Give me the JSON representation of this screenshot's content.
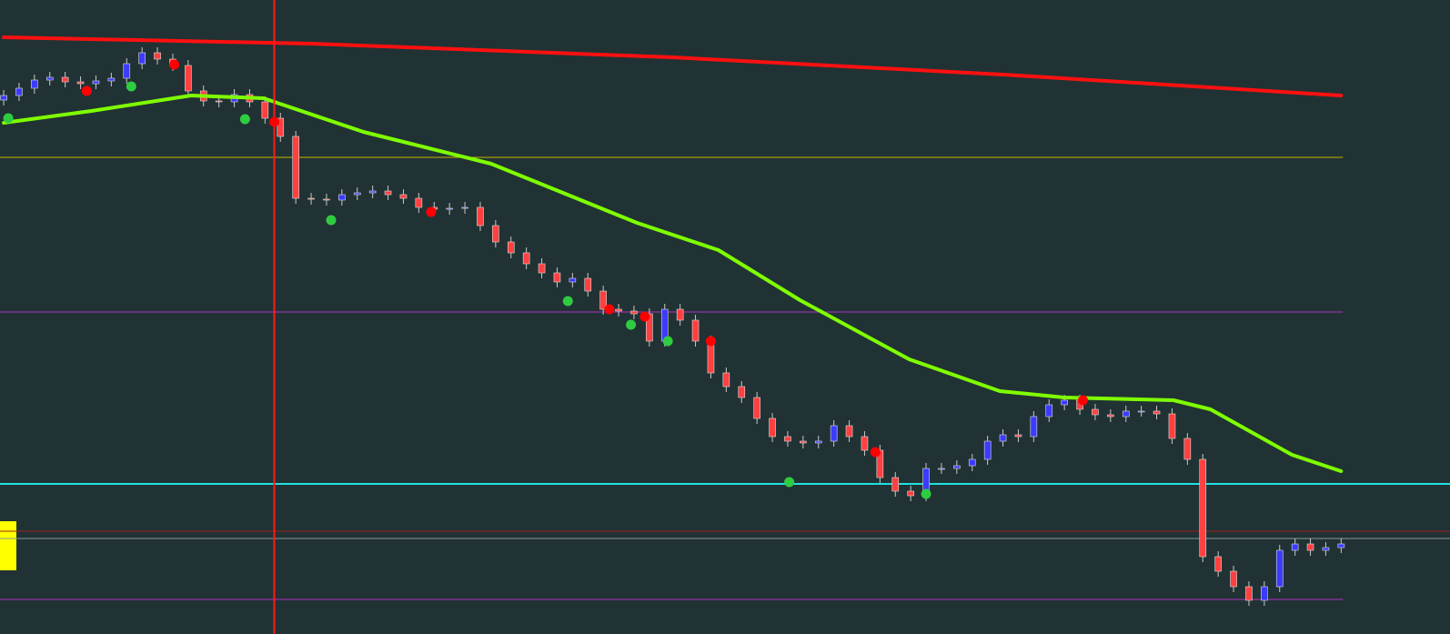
{
  "chart_data": {
    "type": "candlestick",
    "xlim": [
      -0.24,
      94.08
    ],
    "ylim": [
      3,
      700
    ],
    "up_color": "#3b3bff",
    "down_color": "#ff4040",
    "wick_color": "#c8c8c8",
    "open": [
      590,
      595,
      603,
      612,
      615,
      610,
      608,
      611,
      614,
      630,
      642,
      635,
      628,
      600,
      589,
      588,
      596,
      588,
      570,
      550,
      482,
      481,
      480,
      486,
      488,
      490,
      486,
      482,
      472,
      470,
      471,
      472,
      452,
      434,
      422,
      410,
      400,
      390,
      394,
      380,
      360,
      358,
      355,
      325,
      360,
      348,
      325,
      290,
      275,
      263,
      240,
      220,
      215,
      213,
      215,
      232,
      220,
      205,
      175,
      160,
      155,
      185,
      185,
      188,
      195,
      215,
      222,
      220,
      242,
      255,
      260,
      250,
      244,
      242,
      248,
      248,
      245,
      218,
      195,
      88,
      72,
      55,
      40,
      55,
      95,
      102,
      95,
      98
    ],
    "high": [
      601,
      609,
      618,
      621,
      621,
      616,
      617,
      620,
      636,
      648,
      648,
      641,
      634,
      606,
      595,
      602,
      602,
      594,
      576,
      556,
      488,
      487,
      492,
      494,
      496,
      496,
      492,
      488,
      478,
      477,
      478,
      478,
      458,
      440,
      428,
      416,
      406,
      400,
      400,
      386,
      366,
      364,
      361,
      366,
      366,
      354,
      331,
      296,
      281,
      269,
      246,
      226,
      221,
      221,
      238,
      238,
      226,
      211,
      181,
      166,
      191,
      191,
      194,
      201,
      221,
      228,
      228,
      248,
      261,
      266,
      266,
      256,
      250,
      254,
      254,
      254,
      251,
      224,
      201,
      94,
      78,
      61,
      61,
      101,
      108,
      108,
      104,
      108
    ],
    "low": [
      584,
      589,
      597,
      606,
      604,
      602,
      602,
      605,
      608,
      624,
      629,
      622,
      594,
      583,
      582,
      582,
      582,
      564,
      544,
      476,
      475,
      474,
      474,
      480,
      482,
      480,
      476,
      466,
      464,
      464,
      465,
      446,
      428,
      416,
      404,
      394,
      384,
      384,
      374,
      354,
      352,
      349,
      319,
      319,
      342,
      319,
      284,
      269,
      257,
      234,
      214,
      209,
      207,
      207,
      209,
      214,
      199,
      169,
      154,
      149,
      149,
      179,
      179,
      182,
      189,
      209,
      214,
      214,
      236,
      249,
      244,
      238,
      236,
      236,
      242,
      239,
      212,
      189,
      82,
      66,
      49,
      34,
      34,
      49,
      89,
      89,
      89,
      92
    ],
    "close": [
      595,
      603,
      612,
      615,
      610,
      608,
      611,
      614,
      630,
      642,
      635,
      628,
      600,
      589,
      588,
      596,
      588,
      570,
      550,
      482,
      481,
      480,
      486,
      488,
      490,
      486,
      482,
      472,
      470,
      471,
      472,
      452,
      434,
      422,
      410,
      400,
      390,
      394,
      380,
      360,
      358,
      355,
      325,
      360,
      348,
      325,
      290,
      275,
      263,
      240,
      220,
      215,
      213,
      215,
      232,
      220,
      205,
      175,
      160,
      155,
      185,
      185,
      188,
      195,
      215,
      222,
      220,
      242,
      255,
      260,
      250,
      244,
      242,
      248,
      248,
      245,
      218,
      195,
      88,
      72,
      55,
      40,
      55,
      95,
      102,
      95,
      98,
      102
    ],
    "lines": [
      {
        "color": "#ff1010",
        "x": [
          0,
          20,
          43.5,
          65,
          87
        ],
        "values": [
          659,
          652,
          637,
          618,
          595
        ]
      },
      {
        "color": "#7fff00",
        "x": [
          0,
          5.7,
          12.2,
          16.9,
          23.4,
          31.7,
          41.2,
          46.5,
          51.8,
          58.9,
          64.8,
          69,
          76.1,
          78.5,
          83.8,
          87
        ],
        "values": [
          565,
          578,
          595,
          592,
          555,
          520,
          455,
          425,
          370,
          305,
          270,
          263,
          260,
          250,
          200,
          182
        ]
      }
    ],
    "levels": [
      {
        "value": 527,
        "color": "#c8b400",
        "extend": false
      },
      {
        "value": 357,
        "color": "#b030c0",
        "extend": false
      },
      {
        "value": 41,
        "color": "#b030c0",
        "extend": false
      },
      {
        "value": 168,
        "color": "#20e0e0",
        "extend": true
      },
      {
        "value": 116,
        "color": "#a02020",
        "extend": true
      },
      {
        "value": 108,
        "color": "#8a9a9a",
        "extend": true
      }
    ],
    "vline": {
      "x": 17.6,
      "color": "#ff1a1a"
    },
    "dots": [
      {
        "color": "#ff0000",
        "x": [
          5.4,
          11.1,
          17.6,
          27.8,
          39.4,
          41.7,
          46,
          56.7,
          70.2
        ],
        "values": [
          600,
          629,
          566,
          467,
          360,
          352,
          325,
          203,
          260
        ]
      },
      {
        "color": "#2ecc40",
        "x": [
          0.3,
          8.3,
          15.7,
          21.3,
          36.7,
          40.8,
          43.2,
          51.1,
          60
        ],
        "values": [
          570,
          605,
          569,
          458,
          369,
          343,
          325,
          170,
          157
        ]
      }
    ]
  }
}
